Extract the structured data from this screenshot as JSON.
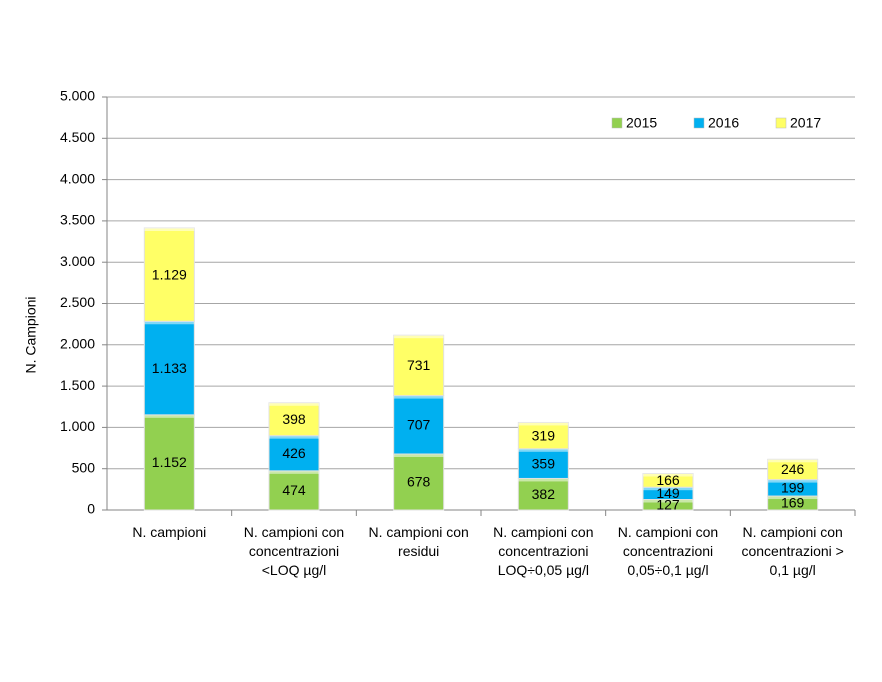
{
  "chart_data": {
    "type": "stacked_bar",
    "y_label": "N. Campioni",
    "categories": [
      "N. campioni",
      "N. campioni con concentrazioni <LOQ µg/l",
      "N. campioni con residui",
      "N. campioni con concentrazioni LOQ÷0,05 µg/l",
      "N. campioni con concentrazioni 0,05÷0,1 µg/l",
      "N. campioni con concentrazioni > 0,1 µg/l"
    ],
    "series": [
      {
        "name": "2015",
        "color": "#92d050",
        "values": [
          1152,
          474,
          678,
          382,
          127,
          169
        ],
        "value_labels": [
          "1.152",
          "474",
          "678",
          "382",
          "127",
          "169"
        ]
      },
      {
        "name": "2016",
        "color": "#00b0f0",
        "values": [
          1133,
          426,
          707,
          359,
          149,
          199
        ],
        "value_labels": [
          "1.133",
          "426",
          "707",
          "359",
          "149",
          "199"
        ]
      },
      {
        "name": "2017",
        "color": "#ffff66",
        "values": [
          1129,
          398,
          731,
          319,
          166,
          246
        ],
        "value_labels": [
          "1.129",
          "398",
          "731",
          "319",
          "166",
          "246"
        ]
      }
    ],
    "ylim": [
      0,
      5000
    ],
    "yticks": [
      0,
      500,
      {
        "value": 1000,
        "label": "1.000"
      },
      {
        "value": 1500,
        "label": "1.500"
      },
      {
        "value": 2000,
        "label": "2.000"
      },
      {
        "value": 2500,
        "label": "2.500"
      },
      {
        "value": 3000,
        "label": "3.000"
      },
      {
        "value": 3500,
        "label": "3.500"
      },
      {
        "value": 4000,
        "label": "4.000"
      },
      {
        "value": 4500,
        "label": "4.500"
      },
      {
        "value": 5000,
        "label": "5.000"
      }
    ],
    "grid": true,
    "legend_position": "top-right"
  }
}
